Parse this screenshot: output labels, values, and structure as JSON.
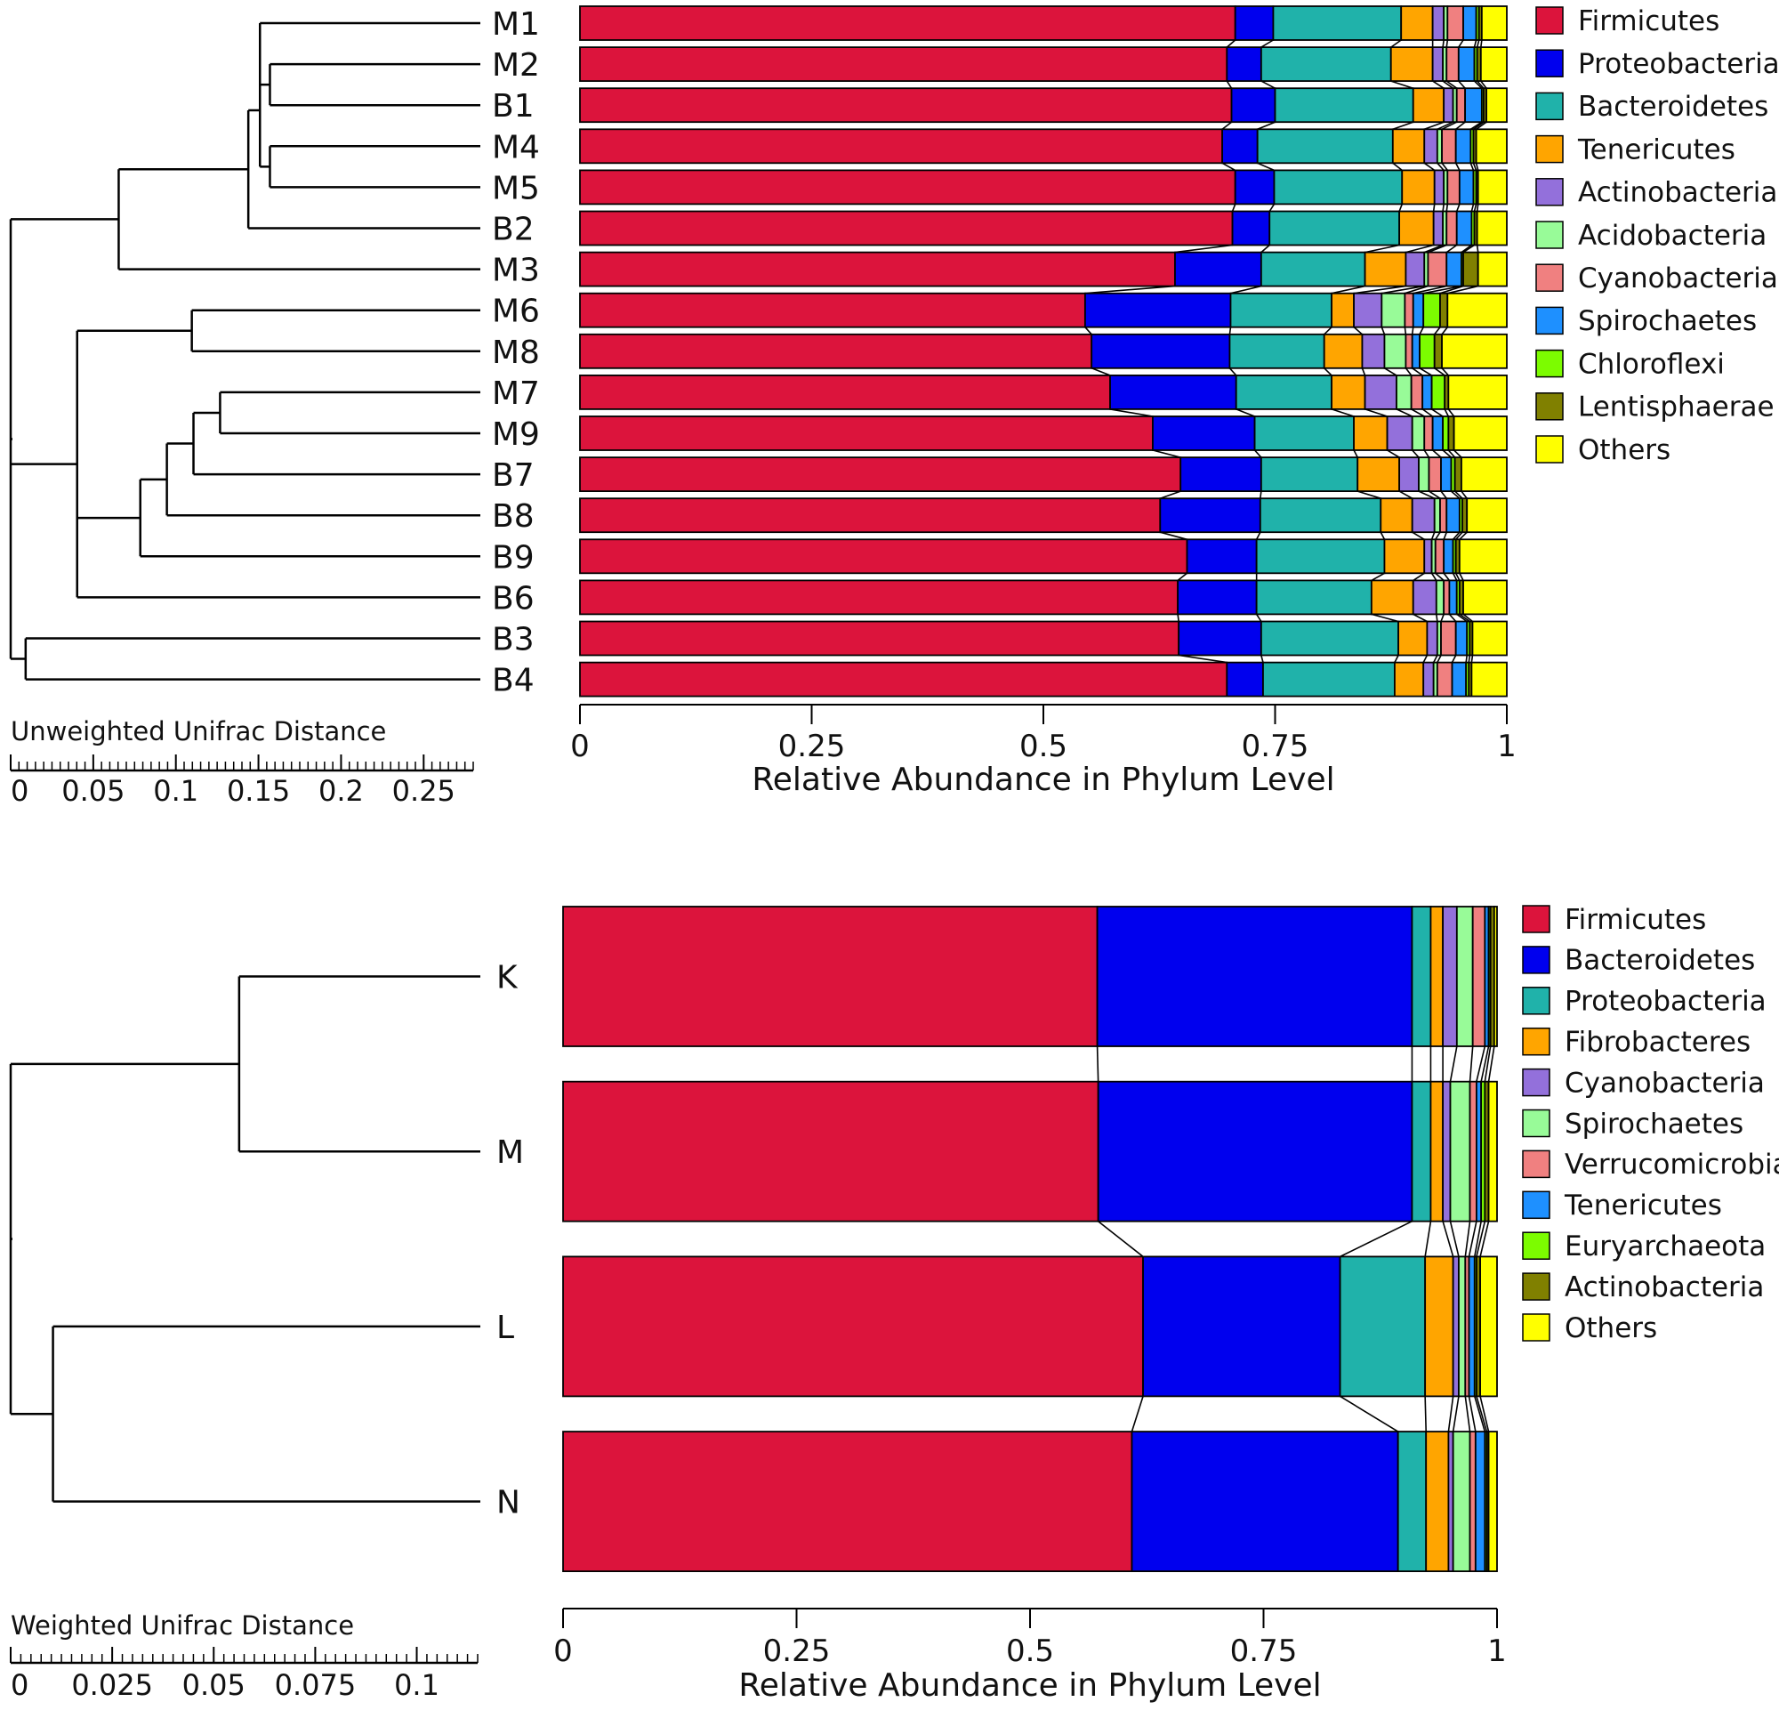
{
  "chart_data": [
    {
      "type": "bar",
      "orientation": "horizontal",
      "stacked": true,
      "dendrogram_title": "Unweighted Unifrac Distance",
      "dendrogram_axis": {
        "range": [
          0,
          0.28
        ],
        "tick_labels": [
          "0",
          "0.05",
          "0.1",
          "0.15",
          "0.2",
          "0.25"
        ]
      },
      "xlabel": "Relative Abundance in Phylum Level",
      "xlim": [
        0,
        1
      ],
      "x_tick_labels": [
        "0",
        "0.25",
        "0.5",
        "0.75",
        "1"
      ],
      "categories": [
        "M1",
        "M2",
        "B1",
        "M4",
        "M5",
        "B2",
        "M3",
        "M6",
        "M8",
        "M7",
        "M9",
        "B7",
        "B8",
        "B9",
        "B6",
        "B3",
        "B4"
      ],
      "colors": [
        "#dc143c",
        "#0000ee",
        "#20b2aa",
        "#ffa500",
        "#9370db",
        "#98fb98",
        "#f08080",
        "#1e90ff",
        "#7cfc00",
        "#808000",
        "#ffff00"
      ],
      "series": [
        {
          "name": "Firmicutes",
          "values": [
            0.707,
            0.698,
            0.703,
            0.693,
            0.707,
            0.704,
            0.642,
            0.545,
            0.552,
            0.572,
            0.618,
            0.648,
            0.626,
            0.655,
            0.645,
            0.646,
            0.698
          ]
        },
        {
          "name": "Proteobacteria",
          "values": [
            0.041,
            0.037,
            0.047,
            0.038,
            0.042,
            0.04,
            0.093,
            0.157,
            0.149,
            0.136,
            0.11,
            0.087,
            0.108,
            0.075,
            0.085,
            0.089,
            0.039
          ]
        },
        {
          "name": "Bacteroidetes",
          "values": [
            0.138,
            0.14,
            0.149,
            0.146,
            0.138,
            0.14,
            0.112,
            0.109,
            0.102,
            0.103,
            0.107,
            0.104,
            0.13,
            0.138,
            0.124,
            0.148,
            0.142
          ]
        },
        {
          "name": "Tenericutes",
          "values": [
            0.034,
            0.045,
            0.033,
            0.034,
            0.035,
            0.037,
            0.044,
            0.024,
            0.041,
            0.036,
            0.036,
            0.045,
            0.034,
            0.043,
            0.045,
            0.031,
            0.031
          ]
        },
        {
          "name": "Actinobacteria",
          "values": [
            0.012,
            0.011,
            0.01,
            0.014,
            0.01,
            0.01,
            0.02,
            0.03,
            0.024,
            0.034,
            0.027,
            0.021,
            0.024,
            0.008,
            0.025,
            0.011,
            0.011
          ]
        },
        {
          "name": "Acidobacteria",
          "values": [
            0.004,
            0.004,
            0.004,
            0.005,
            0.004,
            0.004,
            0.004,
            0.025,
            0.023,
            0.016,
            0.013,
            0.011,
            0.006,
            0.004,
            0.008,
            0.004,
            0.004
          ]
        },
        {
          "name": "Cyanobacteria",
          "values": [
            0.017,
            0.013,
            0.009,
            0.015,
            0.013,
            0.011,
            0.02,
            0.009,
            0.007,
            0.012,
            0.009,
            0.013,
            0.007,
            0.009,
            0.006,
            0.016,
            0.016
          ]
        },
        {
          "name": "Spirochaetes",
          "values": [
            0.014,
            0.017,
            0.018,
            0.016,
            0.015,
            0.016,
            0.016,
            0.011,
            0.008,
            0.01,
            0.011,
            0.011,
            0.014,
            0.01,
            0.008,
            0.012,
            0.015
          ]
        },
        {
          "name": "Chloroflexi",
          "values": [
            0.003,
            0.003,
            0.002,
            0.003,
            0.003,
            0.003,
            0.002,
            0.018,
            0.016,
            0.014,
            0.006,
            0.004,
            0.003,
            0.003,
            0.003,
            0.003,
            0.003
          ]
        },
        {
          "name": "Lentisphaerae",
          "values": [
            0.003,
            0.004,
            0.003,
            0.003,
            0.002,
            0.003,
            0.016,
            0.008,
            0.008,
            0.004,
            0.006,
            0.007,
            0.005,
            0.004,
            0.004,
            0.003,
            0.003
          ]
        },
        {
          "name": "Others",
          "values": [
            0.027,
            0.028,
            0.022,
            0.033,
            0.031,
            0.032,
            0.031,
            0.064,
            0.07,
            0.063,
            0.057,
            0.049,
            0.043,
            0.051,
            0.047,
            0.037,
            0.038
          ]
        }
      ],
      "tree": {
        "children": [
          {
            "children": [
              {
                "children": [
                  {
                    "children": [
                      {
                        "children": [
                          {
                            "leaf": "M1",
                            "h": 0.135
                          },
                          {
                            "children": [
                              {
                                "leaf": "M2",
                                "h": 0.125
                              },
                              {
                                "leaf": "B1",
                                "h": 0.125
                              }
                            ],
                            "h": 0.125
                          }
                        ],
                        "h": 0.131
                      },
                      {
                        "children": [
                          {
                            "leaf": "M4",
                            "h": 0.125
                          },
                          {
                            "leaf": "M5",
                            "h": 0.125
                          }
                        ],
                        "h": 0.125
                      }
                    ],
                    "h": 0.131
                  },
                  {
                    "leaf": "B2",
                    "h": 0.138
                  }
                ],
                "h": 0.138
              },
              {
                "leaf": "M3",
                "h": 0.216
              }
            ],
            "h": 0.216
          },
          {
            "children": [
              {
                "children": [
                  {
                    "leaf": "M6",
                    "h": 0.172
                  },
                  {
                    "leaf": "M8",
                    "h": 0.172
                  }
                ],
                "h": 0.172
              },
              {
                "children": [
                  {
                    "children": [
                      {
                        "children": [
                          {
                            "children": [
                              {
                                "leaf": "M7",
                                "h": 0.155
                              },
                              {
                                "leaf": "M9",
                                "h": 0.155
                              }
                            ],
                            "h": 0.155
                          },
                          {
                            "leaf": "B7",
                            "h": 0.171
                          }
                        ],
                        "h": 0.171
                      },
                      {
                        "leaf": "B8",
                        "h": 0.187
                      }
                    ],
                    "h": 0.187
                  },
                  {
                    "leaf": "B9",
                    "h": 0.203
                  }
                ],
                "h": 0.203
              },
              {
                "leaf": "B6",
                "h": 0.241
              }
            ],
            "h": 0.241
          },
          {
            "children": [
              {
                "leaf": "B3",
                "h": 0.272
              },
              {
                "leaf": "B4",
                "h": 0.272
              }
            ],
            "h": 0.272
          }
        ],
        "h": 0.281
      }
    },
    {
      "type": "bar",
      "orientation": "horizontal",
      "stacked": true,
      "dendrogram_title": "Weighted Unifrac Distance",
      "dendrogram_axis": {
        "range": [
          0,
          0.115
        ],
        "tick_labels": [
          "0",
          "0.025",
          "0.05",
          "0.075",
          "0.1"
        ]
      },
      "xlabel": "Relative Abundance in Phylum Level",
      "xlim": [
        0,
        1
      ],
      "x_tick_labels": [
        "0",
        "0.25",
        "0.5",
        "0.75",
        "1"
      ],
      "categories": [
        "K",
        "M",
        "L",
        "N"
      ],
      "colors": [
        "#dc143c",
        "#0000ee",
        "#20b2aa",
        "#ffa500",
        "#9370db",
        "#98fb98",
        "#f08080",
        "#1e90ff",
        "#7cfc00",
        "#808000",
        "#ffff00"
      ],
      "series": [
        {
          "name": "Firmicutes",
          "values": [
            0.572,
            0.573,
            0.621,
            0.609
          ]
        },
        {
          "name": "Bacteroidetes",
          "values": [
            0.337,
            0.336,
            0.211,
            0.285
          ]
        },
        {
          "name": "Proteobacteria",
          "values": [
            0.02,
            0.02,
            0.091,
            0.03
          ]
        },
        {
          "name": "Fibrobacteres",
          "values": [
            0.013,
            0.013,
            0.03,
            0.024
          ]
        },
        {
          "name": "Cyanobacteria",
          "values": [
            0.015,
            0.008,
            0.006,
            0.005
          ]
        },
        {
          "name": "Spirochaetes",
          "values": [
            0.017,
            0.021,
            0.007,
            0.018
          ]
        },
        {
          "name": "Verrucomicrobia",
          "values": [
            0.013,
            0.007,
            0.004,
            0.006
          ]
        },
        {
          "name": "Tenericutes",
          "values": [
            0.004,
            0.005,
            0.006,
            0.01
          ]
        },
        {
          "name": "Euryarchaeota",
          "values": [
            0.002,
            0.004,
            0.002,
            0.002
          ]
        },
        {
          "name": "Actinobacteria",
          "values": [
            0.004,
            0.004,
            0.004,
            0.002
          ]
        },
        {
          "name": "Others",
          "values": [
            0.003,
            0.009,
            0.018,
            0.009
          ]
        }
      ],
      "tree": {
        "children": [
          {
            "children": [
              {
                "leaf": "K",
                "h": 0.057
              },
              {
                "leaf": "M",
                "h": 0.057
              }
            ],
            "h": 0.057
          },
          {
            "children": [
              {
                "leaf": "L",
                "h": 0.101
              },
              {
                "leaf": "N",
                "h": 0.101
              }
            ],
            "h": 0.101
          }
        ],
        "h": 0.111
      }
    }
  ]
}
